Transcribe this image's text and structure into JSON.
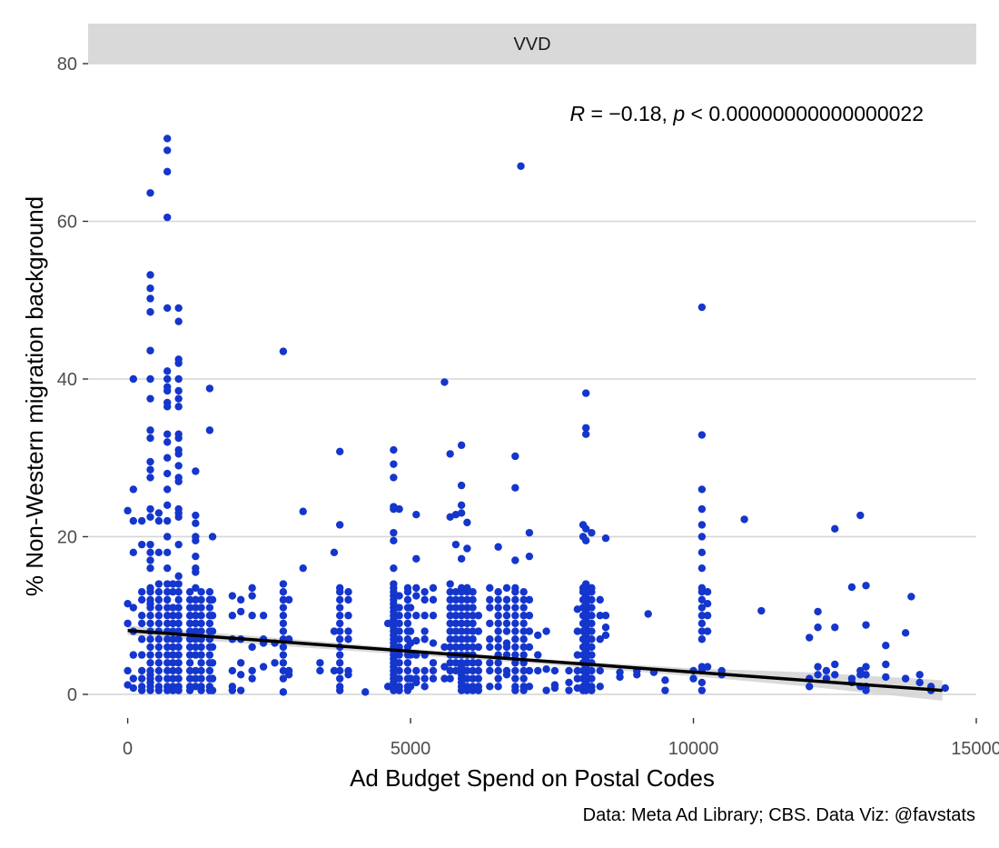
{
  "chart_data": {
    "type": "scatter",
    "facet": "VVD",
    "xlabel": "Ad Budget Spend on Postal Codes",
    "ylabel": "% Non-Western migration background",
    "xlim": [
      -700,
      15000
    ],
    "ylim": [
      -3,
      80
    ],
    "x_ticks": [
      0,
      5000,
      10000,
      15000
    ],
    "x_tick_labels": [
      "0",
      "5000",
      "10000",
      "15000"
    ],
    "y_ticks": [
      0,
      20,
      40,
      60,
      80
    ],
    "y_tick_labels": [
      "0",
      "20",
      "40",
      "60",
      "80"
    ],
    "grid": "horizontal-major",
    "point_color": "#1436CC",
    "annotation": {
      "r_symbol": "R",
      "r_value": " = −0.18, ",
      "p_symbol": "p",
      "p_value": " < 0.00000000000000022"
    },
    "caption": "Data: Meta Ad Library; CBS. Data Viz: @favstats",
    "trend_line": {
      "x": [
        0,
        14400
      ],
      "y": [
        8.1,
        0.5
      ],
      "color": "#000000"
    },
    "confidence_band": {
      "x": [
        0,
        7000,
        10000,
        12000,
        14400
      ],
      "lower": [
        7.5,
        4.0,
        2.3,
        1.0,
        -0.8
      ],
      "upper": [
        8.7,
        4.6,
        3.3,
        2.8,
        1.8
      ],
      "color": "#d3d3d3"
    },
    "x_columns": [
      {
        "x": 0,
        "y": [
          23.3,
          11.5,
          1.2,
          9.0,
          3.0
        ]
      },
      {
        "x": 100,
        "y": [
          26,
          40,
          18,
          22,
          11,
          8,
          5,
          2,
          0.8
        ]
      },
      {
        "x": 250,
        "y": [
          22,
          19,
          13,
          12,
          10,
          9,
          7,
          5,
          3,
          2,
          1,
          0.5
        ]
      },
      {
        "x": 400,
        "y": [
          63.6,
          53.2,
          51.5,
          50.2,
          48.5,
          43.6,
          40,
          37.5,
          33.5,
          32.5,
          29.5,
          28.5,
          27.5,
          23.5,
          22.5,
          19,
          18,
          17,
          16,
          13.5,
          13,
          12,
          11.5,
          11,
          10,
          9,
          8,
          7,
          6,
          5,
          4,
          3,
          2.5,
          2,
          1.5,
          1,
          0.5
        ]
      },
      {
        "x": 550,
        "y": [
          23,
          22,
          18,
          14,
          13,
          12,
          11,
          10,
          9,
          8,
          7,
          6,
          5,
          4,
          3,
          2,
          1,
          0.5
        ]
      },
      {
        "x": 700,
        "y": [
          70.5,
          69,
          66.3,
          60.5,
          49,
          41,
          40,
          39,
          38.5,
          37,
          36.5,
          33,
          32,
          30,
          28,
          26,
          24,
          22,
          20,
          18,
          16,
          14,
          13,
          12,
          11,
          10,
          9,
          8,
          7,
          6,
          5,
          4,
          3,
          2,
          1,
          0.5
        ]
      },
      {
        "x": 800,
        "y": [
          14,
          13,
          11,
          10,
          9,
          8,
          7,
          6,
          5,
          4,
          3,
          2,
          1,
          0.5
        ]
      },
      {
        "x": 900,
        "y": [
          49,
          47.3,
          42.5,
          42,
          40,
          38.5,
          37.5,
          36.5,
          33,
          32.5,
          31,
          30.5,
          29,
          27.5,
          27,
          23.5,
          23,
          22.5,
          19,
          15,
          14,
          13,
          12,
          11,
          10,
          9,
          8,
          7,
          6,
          5,
          4,
          3,
          2,
          1,
          0.5
        ]
      },
      {
        "x": 1100,
        "y": [
          13,
          12,
          11,
          10,
          9,
          8,
          7,
          6,
          5,
          4,
          3,
          2,
          1,
          0.5
        ]
      },
      {
        "x": 1200,
        "y": [
          28.3,
          22.7,
          21.7,
          20,
          19.5,
          17.5,
          16,
          15.5,
          13.5,
          12,
          11,
          10,
          9,
          8,
          7,
          6,
          5,
          3,
          2,
          1
        ]
      },
      {
        "x": 1300,
        "y": [
          13,
          12,
          11,
          10,
          9,
          8,
          7,
          6,
          5,
          4,
          3,
          2,
          1,
          0.5
        ]
      },
      {
        "x": 1450,
        "y": [
          38.8,
          33.5,
          13,
          12,
          11,
          10,
          9,
          8,
          7,
          6,
          5,
          4,
          3,
          2,
          1,
          0.5
        ]
      },
      {
        "x": 1500,
        "y": [
          20,
          12,
          10,
          8,
          6,
          4,
          2,
          0.5
        ]
      },
      {
        "x": 1850,
        "y": [
          12.5,
          10,
          7,
          3,
          1,
          0.5
        ]
      },
      {
        "x": 2000,
        "y": [
          12,
          10.5,
          7,
          4,
          2.5,
          0.5
        ]
      },
      {
        "x": 2200,
        "y": [
          13.5,
          12.5,
          10,
          6,
          3,
          2
        ]
      },
      {
        "x": 2400,
        "y": [
          10,
          7,
          6.5,
          3.5
        ]
      },
      {
        "x": 2600,
        "y": [
          6.5,
          4
        ]
      },
      {
        "x": 2750,
        "y": [
          43.5,
          14,
          13,
          12,
          11,
          10,
          9,
          8,
          7,
          6,
          5,
          4,
          3,
          2,
          0.3
        ]
      },
      {
        "x": 2850,
        "y": [
          12,
          7,
          3,
          2.5
        ]
      },
      {
        "x": 3100,
        "y": [
          23.2,
          16
        ]
      },
      {
        "x": 3400,
        "y": [
          4,
          3
        ]
      },
      {
        "x": 3650,
        "y": [
          18,
          8,
          3
        ]
      },
      {
        "x": 3750,
        "y": [
          30.8,
          21.5,
          13.5,
          13,
          12,
          11,
          10,
          9,
          8,
          7,
          6,
          5,
          4,
          3,
          2,
          1,
          0.5
        ]
      },
      {
        "x": 3900,
        "y": [
          13,
          12,
          10,
          8,
          7,
          3,
          2.5
        ]
      },
      {
        "x": 4200,
        "y": [
          0.3
        ]
      },
      {
        "x": 4600,
        "y": [
          9,
          1
        ]
      },
      {
        "x": 4700,
        "y": [
          31,
          29.2,
          27.5,
          23.8,
          23.5,
          20.5,
          19.5,
          16,
          14,
          13.5,
          13,
          12.5,
          12,
          11.5,
          11,
          10.5,
          10,
          9.5,
          9,
          8.5,
          8,
          7.5,
          7,
          6.5,
          6,
          5.5,
          5,
          4.5,
          4,
          3.5,
          3,
          2.5,
          2,
          1.5,
          1,
          0.5
        ]
      },
      {
        "x": 4800,
        "y": [
          23.5,
          12.5,
          11,
          10,
          9,
          8,
          7,
          6,
          5,
          4,
          3,
          2,
          1,
          0.5
        ]
      },
      {
        "x": 4950,
        "y": [
          13.5,
          13,
          12,
          11,
          10,
          9,
          8,
          7,
          6,
          5,
          4,
          3,
          2,
          1,
          0.5
        ]
      },
      {
        "x": 5000,
        "y": [
          11,
          8,
          6.5,
          5,
          2,
          1
        ]
      },
      {
        "x": 5100,
        "y": [
          22.8,
          17.2,
          13.5,
          12.5,
          10,
          6.8,
          5,
          3,
          2,
          1.5
        ]
      },
      {
        "x": 5250,
        "y": [
          13,
          12,
          10,
          8,
          7,
          5,
          3,
          2,
          1
        ]
      },
      {
        "x": 5400,
        "y": [
          13.5,
          12,
          10,
          6.5,
          4,
          3,
          2
        ]
      },
      {
        "x": 5600,
        "y": [
          39.6,
          6,
          3.5,
          2
        ]
      },
      {
        "x": 5700,
        "y": [
          30.5,
          22.5,
          14,
          13,
          12,
          11,
          10,
          9,
          8,
          7,
          6,
          5,
          4,
          3,
          2
        ]
      },
      {
        "x": 5800,
        "y": [
          22.8,
          19,
          13,
          12,
          11,
          10,
          9,
          8,
          7,
          6,
          5,
          4,
          3
        ]
      },
      {
        "x": 5900,
        "y": [
          31.6,
          26.5,
          24,
          23,
          17.2,
          13.5,
          13,
          12,
          11,
          10,
          9,
          8,
          7,
          6,
          5,
          4,
          3.5,
          3,
          2.5,
          2,
          1.5,
          1,
          0.5
        ]
      },
      {
        "x": 6000,
        "y": [
          21.8,
          18.5,
          13.5,
          13,
          12,
          11,
          10,
          9,
          8,
          7,
          6,
          5,
          4,
          3,
          2,
          1,
          0.5
        ]
      },
      {
        "x": 6100,
        "y": [
          13,
          12,
          11,
          10,
          9,
          8,
          7,
          6,
          5,
          4,
          3,
          2,
          1,
          0.5
        ]
      },
      {
        "x": 6200,
        "y": [
          10,
          8,
          6,
          4,
          3,
          2,
          1,
          0.5
        ]
      },
      {
        "x": 6400,
        "y": [
          13.5,
          12,
          11,
          9,
          7,
          6,
          4,
          3,
          1
        ]
      },
      {
        "x": 6550,
        "y": [
          18.7,
          13,
          12,
          11,
          10,
          9,
          8,
          7,
          6,
          5,
          4,
          3,
          2,
          1
        ]
      },
      {
        "x": 6700,
        "y": [
          13.5,
          12,
          11,
          10,
          9,
          8,
          6.5,
          6,
          5,
          3,
          2.5
        ]
      },
      {
        "x": 6850,
        "y": [
          30.2,
          26.2,
          17,
          13.5,
          13,
          12,
          11,
          10,
          9,
          8,
          7,
          6,
          5,
          4,
          3,
          2,
          1,
          0.5
        ]
      },
      {
        "x": 6950,
        "y": [
          67
        ]
      },
      {
        "x": 7000,
        "y": [
          13,
          12,
          11,
          10,
          9,
          8,
          7,
          6,
          5,
          4,
          3,
          2,
          1,
          0.5
        ]
      },
      {
        "x": 7100,
        "y": [
          20.5,
          17.5,
          12,
          10,
          8,
          6,
          3,
          1
        ]
      },
      {
        "x": 7250,
        "y": [
          7.5,
          5,
          3
        ]
      },
      {
        "x": 7400,
        "y": [
          8,
          3.2,
          0.5
        ]
      },
      {
        "x": 7550,
        "y": [
          1.2,
          3,
          0.8
        ]
      },
      {
        "x": 7800,
        "y": [
          3,
          1.5,
          0.5
        ]
      },
      {
        "x": 7950,
        "y": [
          10.8,
          8,
          5,
          3,
          2,
          0.8
        ]
      },
      {
        "x": 8050,
        "y": [
          21.5,
          20,
          13.5,
          13,
          12,
          11,
          10,
          9,
          8,
          7,
          6,
          5,
          4,
          3,
          2,
          1,
          0.5
        ]
      },
      {
        "x": 8100,
        "y": [
          38.2,
          33.8,
          33,
          21,
          19.5,
          14,
          13.5,
          13,
          12.5,
          12,
          11.5,
          11,
          10.5,
          10,
          9.5,
          9,
          8.5,
          8,
          7.5,
          7,
          6.5,
          6,
          5.5,
          5,
          4.5,
          4,
          3.5,
          3,
          2.5,
          2,
          1.5,
          1,
          0.5
        ]
      },
      {
        "x": 8200,
        "y": [
          20.5,
          13.5,
          13,
          12,
          11,
          10,
          9,
          8,
          7,
          6,
          5,
          4,
          3,
          2,
          1,
          0.5
        ]
      },
      {
        "x": 8350,
        "y": [
          12,
          10,
          7,
          3,
          1
        ]
      },
      {
        "x": 8450,
        "y": [
          19.8,
          10,
          8.5,
          7.5
        ]
      },
      {
        "x": 8700,
        "y": [
          2.8,
          2.2
        ]
      },
      {
        "x": 9000,
        "y": [
          3,
          2.5
        ]
      },
      {
        "x": 9200,
        "y": [
          10.2
        ]
      },
      {
        "x": 9300,
        "y": [
          2.8
        ]
      },
      {
        "x": 9500,
        "y": [
          1.8,
          0.5
        ]
      },
      {
        "x": 10000,
        "y": [
          2,
          3
        ]
      },
      {
        "x": 10150,
        "y": [
          49.1,
          32.9,
          26,
          23.5,
          21.5,
          20,
          18,
          16,
          13.5,
          13,
          12,
          11,
          10,
          9,
          8,
          7,
          3.5,
          3,
          1.5,
          0.5
        ]
      },
      {
        "x": 10250,
        "y": [
          13,
          11.5,
          10,
          8,
          3.5
        ]
      },
      {
        "x": 10500,
        "y": [
          3,
          2.5
        ]
      },
      {
        "x": 10900,
        "y": [
          22.2
        ]
      },
      {
        "x": 11200,
        "y": [
          10.6
        ]
      },
      {
        "x": 12050,
        "y": [
          7.2,
          2,
          1
        ]
      },
      {
        "x": 12200,
        "y": [
          10.5,
          8.5,
          3.5,
          2.5
        ]
      },
      {
        "x": 12350,
        "y": [
          3,
          2
        ]
      },
      {
        "x": 12500,
        "y": [
          21,
          8.5,
          3.8,
          2.5
        ]
      },
      {
        "x": 12800,
        "y": [
          13.6,
          2,
          1.5
        ]
      },
      {
        "x": 12950,
        "y": [
          22.7,
          3,
          2.5,
          1
        ]
      },
      {
        "x": 13050,
        "y": [
          13.8,
          8.8,
          3.5,
          2.5,
          1,
          0.5
        ]
      },
      {
        "x": 13400,
        "y": [
          6.2,
          3.8,
          2.2
        ]
      },
      {
        "x": 13750,
        "y": [
          7.8,
          2
        ]
      },
      {
        "x": 13850,
        "y": [
          12.4
        ]
      },
      {
        "x": 14000,
        "y": [
          2.5,
          1.5
        ]
      },
      {
        "x": 14200,
        "y": [
          1,
          0.5
        ]
      },
      {
        "x": 14450,
        "y": [
          0.8
        ]
      }
    ]
  }
}
